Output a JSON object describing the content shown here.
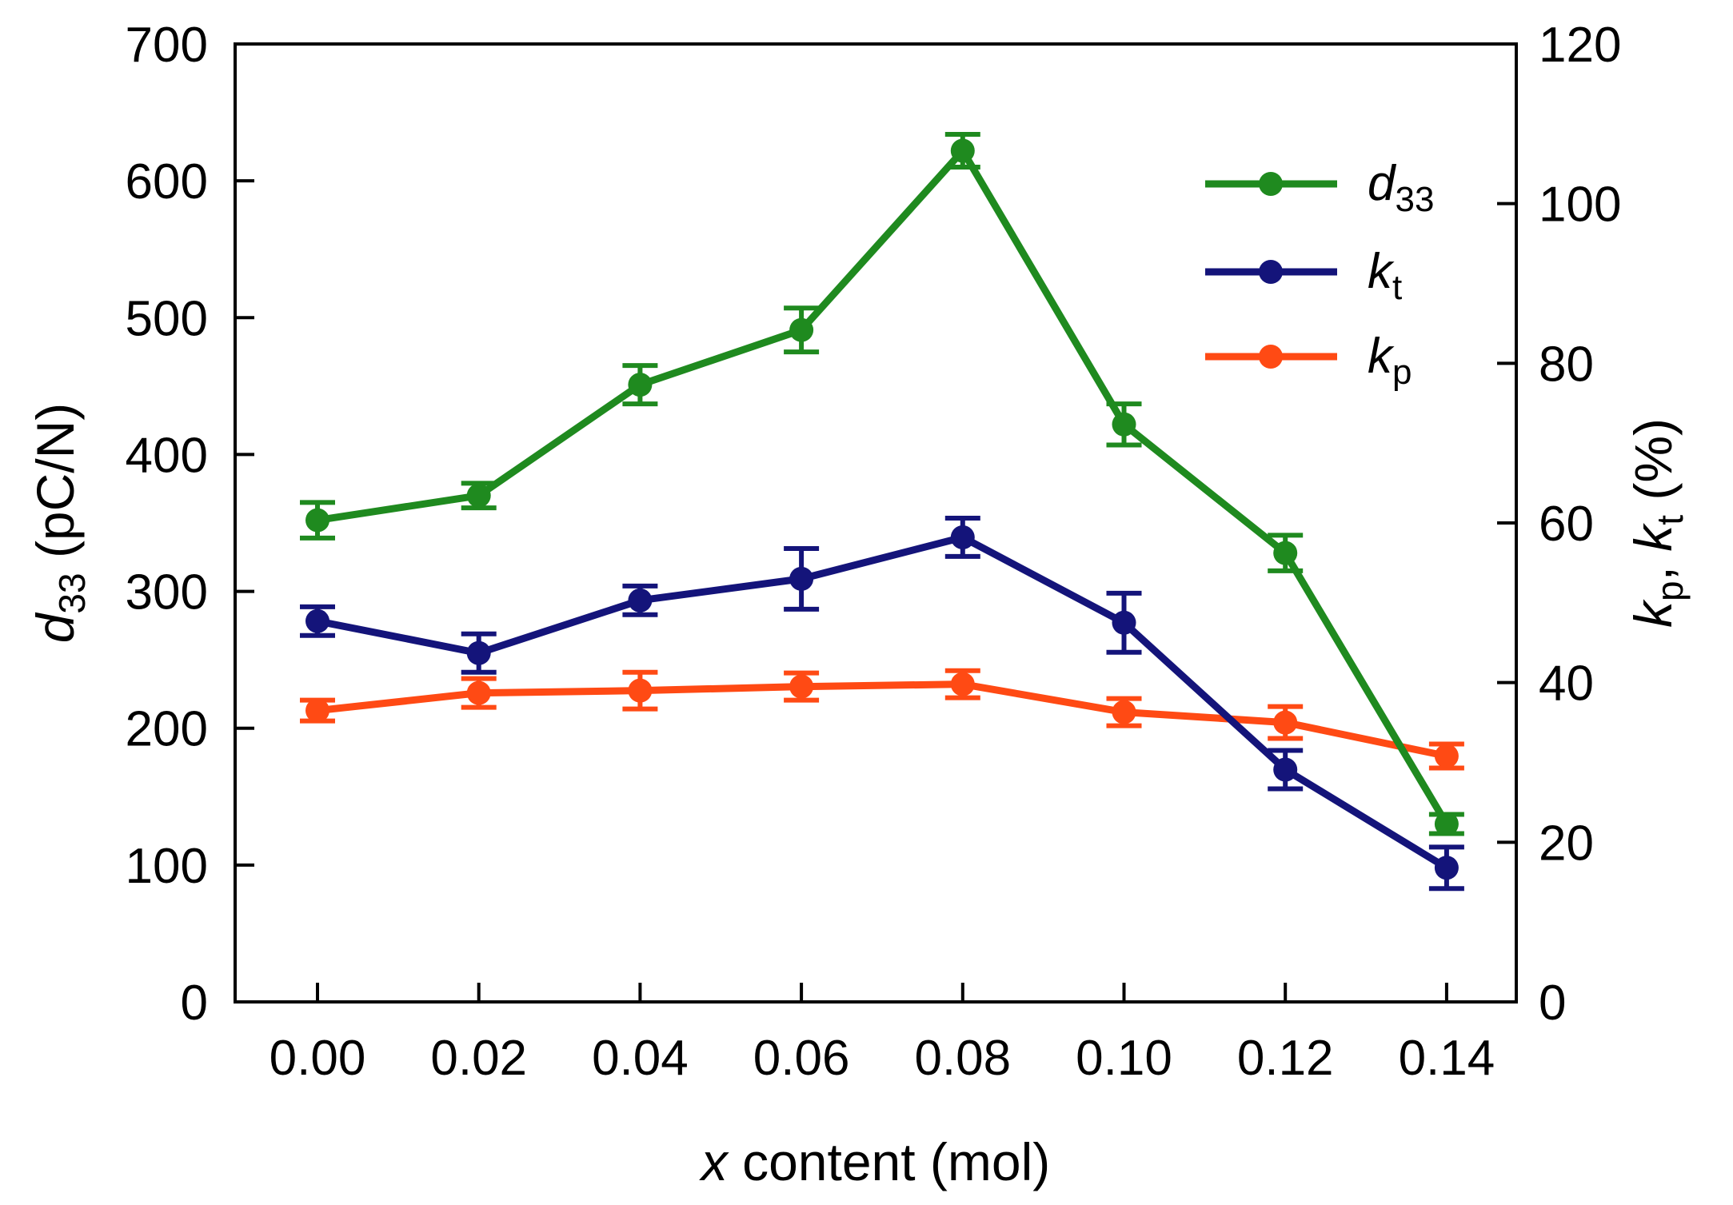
{
  "chart_data": {
    "type": "line",
    "title": "",
    "xlabel": {
      "var": "x",
      "rest": " content (mol)"
    },
    "ylabel_left": {
      "var": "d",
      "sub": "33",
      "rest": " (pC/N)"
    },
    "ylabel_right": {
      "k1": "k",
      "sub1": "p",
      "sep": ", ",
      "k2": "k",
      "sub2": "t",
      "rest": " (%)"
    },
    "x": [
      0.0,
      0.02,
      0.04,
      0.06,
      0.08,
      0.1,
      0.12,
      0.14
    ],
    "x_tick_labels": [
      "0.00",
      "0.02",
      "0.04",
      "0.06",
      "0.08",
      "0.10",
      "0.12",
      "0.14"
    ],
    "ylim_left": [
      0,
      700
    ],
    "yticks_left": [
      "0",
      "100",
      "200",
      "300",
      "400",
      "500",
      "600",
      "700"
    ],
    "ylim_right": [
      0,
      120
    ],
    "yticks_right": [
      "0",
      "20",
      "40",
      "60",
      "80",
      "100",
      "120"
    ],
    "legend_position": "top-right",
    "grid": false,
    "series": [
      {
        "name": "d33",
        "label_main": "d",
        "label_sub": "33",
        "axis": "left",
        "color": "#1f8a1f",
        "values": [
          352,
          370,
          451,
          491,
          622,
          422,
          328,
          130
        ],
        "errors": [
          13,
          9,
          14,
          16,
          12,
          15,
          13,
          7
        ]
      },
      {
        "name": "kt",
        "label_main": "k",
        "label_sub": "t",
        "axis": "right",
        "color": "#14147a",
        "values": [
          47.7,
          43.7,
          50.3,
          53.0,
          58.2,
          47.5,
          29.1,
          16.8
        ],
        "errors": [
          1.8,
          2.4,
          1.8,
          3.8,
          2.4,
          3.7,
          2.4,
          2.6
        ]
      },
      {
        "name": "kp",
        "label_main": "k",
        "label_sub": "p",
        "axis": "right",
        "color": "#ff4a14",
        "values": [
          36.5,
          38.7,
          39.0,
          39.5,
          39.8,
          36.3,
          35.0,
          30.8
        ],
        "errors": [
          1.3,
          1.8,
          2.3,
          1.7,
          1.7,
          1.7,
          2.0,
          1.5
        ]
      }
    ]
  }
}
